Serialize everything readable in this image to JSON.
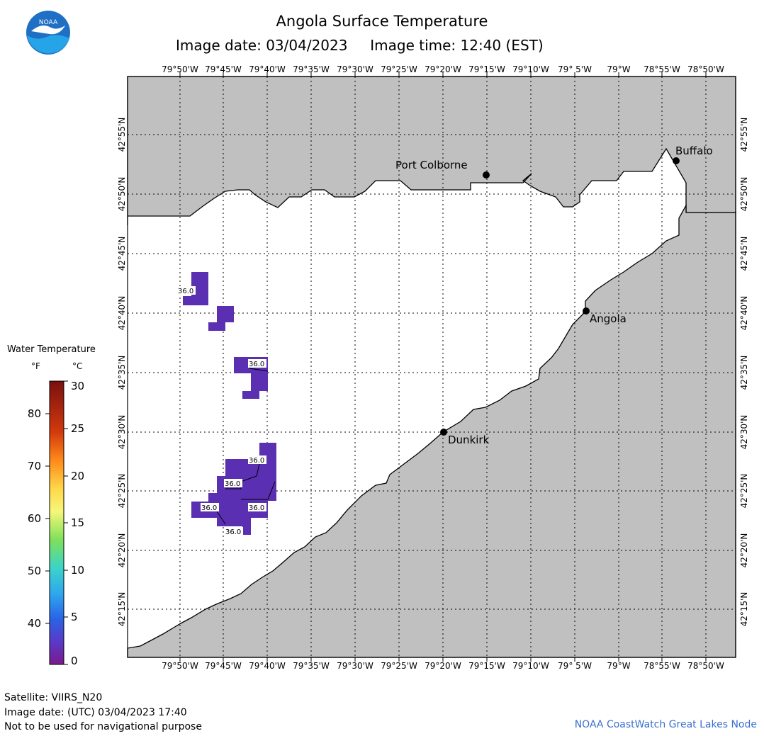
{
  "header": {
    "title": "Angola Surface Temperature",
    "date_line": "Image date: 03/04/2023     Image time: 12:40 (EST)"
  },
  "logo": {
    "text": "NOAA",
    "icon": "noaa-logo-icon",
    "colors": {
      "sky": "#1f6fc4",
      "bird": "#ffffff",
      "sea": "#25a4e8"
    }
  },
  "map": {
    "land_color": "#c0c0c0",
    "water_color": "#ffffff",
    "cloud_color": "#5b2fb2",
    "grid": "dotted",
    "lon_labels": [
      "79°50'W",
      "79°45'W",
      "79°40'W",
      "79°35'W",
      "79°30'W",
      "79°25'W",
      "79°20'W",
      "79°15'W",
      "79°10'W",
      "79° 5'W",
      "79°W",
      "78°55'W",
      "78°50'W"
    ],
    "lat_labels": [
      "42°55'N",
      "42°50'N",
      "42°45'N",
      "42°40'N",
      "42°35'N",
      "42°30'N",
      "42°25'N",
      "42°20'N",
      "42°15'N"
    ],
    "cities": [
      {
        "name": "Port Colborne"
      },
      {
        "name": "Buffalo"
      },
      {
        "name": "Angola"
      },
      {
        "name": "Dunkirk"
      }
    ],
    "temperature_labels": [
      "36.0",
      "36.0",
      "36.0",
      "36.0",
      "36.0",
      "36.0",
      "36.0"
    ]
  },
  "legend": {
    "title": "Water Temperature",
    "unit_f": "°F",
    "unit_c": "°C",
    "f_ticks": [
      "80",
      "70",
      "60",
      "50",
      "40"
    ],
    "c_ticks": [
      "30",
      "25",
      "20",
      "15",
      "10",
      "5",
      "0"
    ],
    "gradient_colors": [
      "#7a0f0f",
      "#d23a0c",
      "#ff8a1a",
      "#ffd84a",
      "#f6f67a",
      "#7fe05a",
      "#3ad4c8",
      "#2fa7ee",
      "#2a63e6",
      "#5a3ac8",
      "#7a1a8c"
    ]
  },
  "footer": {
    "satellite": "Satellite: VIIRS_N20",
    "utc_date": "Image date: (UTC) 03/04/2023  17:40",
    "disclaimer": "Not to be used for navigational purpose",
    "credit": "NOAA CoastWatch Great Lakes Node"
  }
}
